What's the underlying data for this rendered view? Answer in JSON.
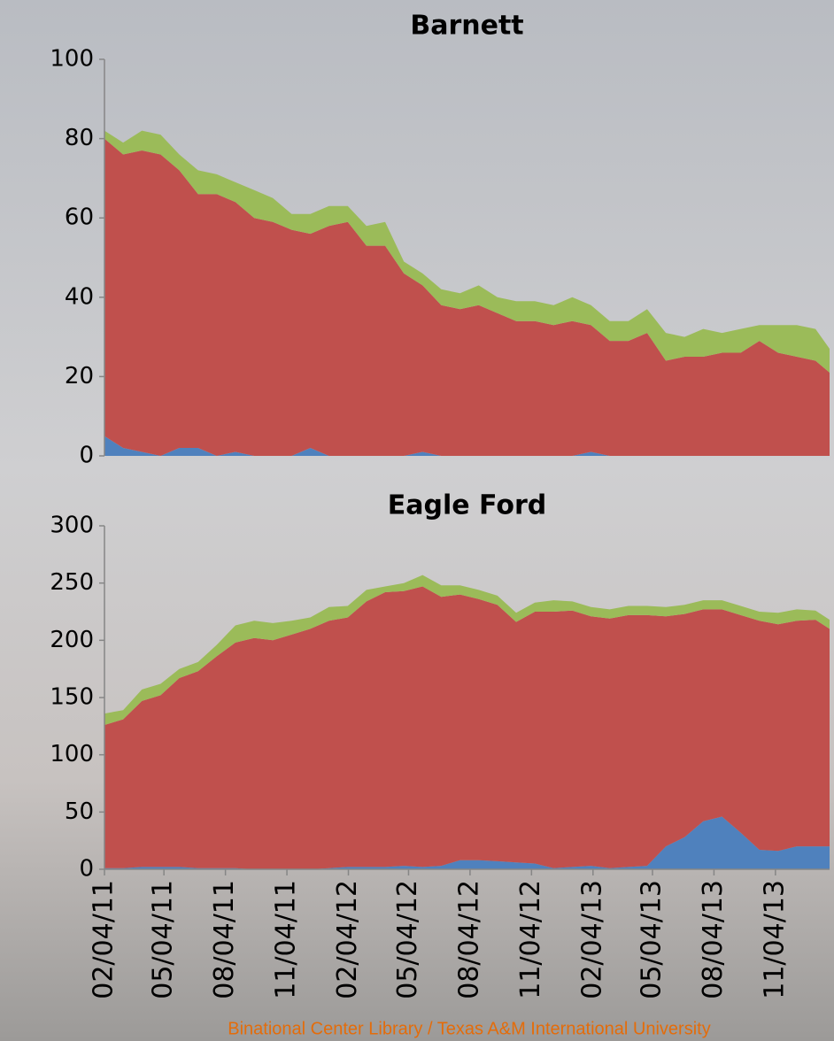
{
  "chart_data": [
    {
      "type": "stacked-area",
      "title": "Barnett",
      "x": [
        "02/04/11",
        "03/04/11",
        "04/01/11",
        "04/29/11",
        "05/27/11",
        "06/24/11",
        "07/22/11",
        "08/19/11",
        "09/16/11",
        "10/14/11",
        "11/11/11",
        "12/09/11",
        "01/06/12",
        "02/03/12",
        "03/02/12",
        "03/30/12",
        "04/27/12",
        "05/25/12",
        "06/22/12",
        "07/20/12",
        "08/17/12",
        "09/14/12",
        "10/12/12",
        "11/09/12",
        "12/07/12",
        "01/04/13",
        "02/01/13",
        "03/01/13",
        "03/29/13",
        "04/26/13",
        "05/24/13",
        "06/21/13",
        "07/19/13",
        "08/16/13",
        "09/13/13",
        "10/11/13",
        "11/08/13",
        "12/06/13",
        "01/03/14",
        "01/24/14"
      ],
      "xlim": [
        "02/04/11",
        "01/24/14"
      ],
      "ylim": [
        0,
        100
      ],
      "yticks": [
        0,
        20,
        40,
        60,
        80,
        100
      ],
      "series": [
        {
          "color": "#4f81bd",
          "values": [
            5,
            2,
            1,
            0,
            2,
            2,
            0,
            1,
            0,
            0,
            0,
            2,
            0,
            0,
            0,
            0,
            0,
            1,
            0,
            0,
            0,
            0,
            0,
            0,
            0,
            0,
            1,
            0,
            0,
            0,
            0,
            0,
            0,
            0,
            0,
            0,
            0,
            0,
            0,
            0
          ]
        },
        {
          "color": "#c0504d",
          "values": [
            75,
            74,
            76,
            76,
            70,
            64,
            66,
            63,
            60,
            59,
            57,
            54,
            58,
            59,
            53,
            53,
            46,
            42,
            38,
            37,
            38,
            36,
            34,
            34,
            33,
            34,
            32,
            29,
            29,
            31,
            24,
            25,
            25,
            26,
            26,
            29,
            26,
            25,
            24,
            21
          ]
        },
        {
          "color": "#9bbb59",
          "values": [
            2,
            3,
            5,
            5,
            4,
            6,
            5,
            5,
            7,
            6,
            4,
            5,
            5,
            4,
            5,
            6,
            3,
            3,
            4,
            4,
            5,
            4,
            5,
            5,
            5,
            6,
            5,
            5,
            5,
            6,
            7,
            5,
            7,
            5,
            6,
            4,
            7,
            8,
            8,
            6
          ]
        }
      ]
    },
    {
      "type": "stacked-area",
      "title": "Eagle Ford",
      "x": [
        "02/04/11",
        "03/04/11",
        "04/01/11",
        "04/29/11",
        "05/27/11",
        "06/24/11",
        "07/22/11",
        "08/19/11",
        "09/16/11",
        "10/14/11",
        "11/11/11",
        "12/09/11",
        "01/06/12",
        "02/03/12",
        "03/02/12",
        "03/30/12",
        "04/27/12",
        "05/25/12",
        "06/22/12",
        "07/20/12",
        "08/17/12",
        "09/14/12",
        "10/12/12",
        "11/09/12",
        "12/07/12",
        "01/04/13",
        "02/01/13",
        "03/01/13",
        "03/29/13",
        "04/26/13",
        "05/24/13",
        "06/21/13",
        "07/19/13",
        "08/16/13",
        "09/13/13",
        "10/11/13",
        "11/08/13",
        "12/06/13",
        "01/03/14",
        "01/24/14"
      ],
      "xlim": [
        "02/04/11",
        "01/24/14"
      ],
      "xticks": [
        "02/04/11",
        "05/04/11",
        "08/04/11",
        "11/04/11",
        "02/04/12",
        "05/04/12",
        "08/04/12",
        "11/04/12",
        "02/04/13",
        "05/04/13",
        "08/04/13",
        "11/04/13"
      ],
      "ylim": [
        0,
        300
      ],
      "yticks": [
        0,
        50,
        100,
        150,
        200,
        250,
        300
      ],
      "series": [
        {
          "color": "#4f81bd",
          "values": [
            1,
            1,
            2,
            2,
            2,
            1,
            1,
            1,
            0,
            0,
            0,
            0,
            1,
            2,
            2,
            2,
            3,
            2,
            3,
            8,
            8,
            7,
            6,
            5,
            1,
            2,
            3,
            1,
            2,
            3,
            20,
            28,
            42,
            46,
            32,
            17,
            16,
            20,
            20,
            20
          ]
        },
        {
          "color": "#c0504d",
          "values": [
            125,
            130,
            145,
            150,
            165,
            172,
            185,
            197,
            202,
            200,
            205,
            210,
            216,
            218,
            232,
            240,
            240,
            245,
            235,
            232,
            228,
            224,
            210,
            220,
            224,
            224,
            218,
            218,
            220,
            219,
            201,
            195,
            185,
            181,
            190,
            200,
            198,
            197,
            198,
            190
          ]
        },
        {
          "color": "#9bbb59",
          "values": [
            10,
            8,
            10,
            10,
            8,
            8,
            10,
            15,
            15,
            15,
            12,
            10,
            12,
            10,
            10,
            5,
            7,
            10,
            10,
            8,
            8,
            8,
            8,
            8,
            10,
            8,
            8,
            8,
            8,
            8,
            8,
            8,
            8,
            8,
            8,
            8,
            10,
            10,
            8,
            8
          ]
        }
      ]
    }
  ],
  "footer": "Binational Center Library / Texas A&M International University"
}
